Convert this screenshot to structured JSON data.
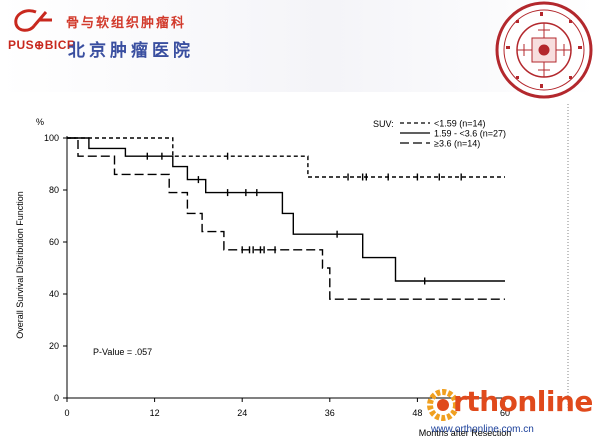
{
  "header": {
    "institute_cn": "骨与软组织肿瘤科",
    "hospital_cn": "北京肿瘤医院",
    "logo_text": "PUS⊕BICR",
    "seal_text": "北京大学肿瘤医院骨与软组织肿瘤科 PEKING UNIVERSITY SCHOOL OF ONCOLOGY BEIJING CANCER HOSPITAL"
  },
  "watermark": {
    "brand": "rthonline",
    "url": "www.orthonline.com.cn"
  },
  "chart_data": {
    "type": "line",
    "step": true,
    "ylabel": "Overall Survival Distribution Function",
    "y_unit": "%",
    "xlabel": "Months after Resection",
    "xlim": [
      0,
      60
    ],
    "ylim": [
      0,
      100
    ],
    "x_ticks": [
      0,
      12,
      24,
      36,
      48,
      60
    ],
    "y_ticks": [
      0,
      20,
      40,
      60,
      80,
      100
    ],
    "annotation": "P-Value = .057",
    "legend_title": "SUV:",
    "legend_position": "top-right",
    "series": [
      {
        "name": "<1.59 (n=14)",
        "dash": "short",
        "points": [
          [
            0,
            100
          ],
          [
            14.5,
            100
          ],
          [
            14.5,
            93
          ],
          [
            33,
            93
          ],
          [
            33,
            85
          ],
          [
            60,
            85
          ]
        ],
        "censored": [
          [
            22,
            93
          ],
          [
            38.5,
            85
          ],
          [
            40.5,
            85
          ],
          [
            41,
            85
          ],
          [
            44,
            85
          ],
          [
            48,
            85
          ],
          [
            51,
            85
          ],
          [
            54,
            85
          ]
        ]
      },
      {
        "name": "1.59 - <3.6 (n=27)",
        "dash": "solid",
        "points": [
          [
            0,
            100
          ],
          [
            3,
            100
          ],
          [
            3,
            96
          ],
          [
            8,
            96
          ],
          [
            8,
            93
          ],
          [
            14.5,
            93
          ],
          [
            14.5,
            89
          ],
          [
            16.5,
            89
          ],
          [
            16.5,
            84
          ],
          [
            19,
            84
          ],
          [
            19,
            79
          ],
          [
            29.5,
            79
          ],
          [
            29.5,
            71
          ],
          [
            31,
            71
          ],
          [
            31,
            63
          ],
          [
            40.5,
            63
          ],
          [
            40.5,
            54
          ],
          [
            45,
            54
          ],
          [
            45,
            45
          ],
          [
            60,
            45
          ]
        ],
        "censored": [
          [
            11,
            93
          ],
          [
            13,
            93
          ],
          [
            18,
            84
          ],
          [
            22,
            79
          ],
          [
            24.5,
            79
          ],
          [
            26,
            79
          ],
          [
            37,
            63
          ],
          [
            49,
            45
          ]
        ]
      },
      {
        "name": "≥3.6 (n=14)",
        "dash": "long",
        "points": [
          [
            0,
            100
          ],
          [
            1.5,
            100
          ],
          [
            1.5,
            93
          ],
          [
            6.5,
            93
          ],
          [
            6.5,
            86
          ],
          [
            14,
            86
          ],
          [
            14,
            79
          ],
          [
            16.5,
            79
          ],
          [
            16.5,
            71
          ],
          [
            18.5,
            71
          ],
          [
            18.5,
            64
          ],
          [
            21.5,
            64
          ],
          [
            21.5,
            57
          ],
          [
            35,
            57
          ],
          [
            35,
            50
          ],
          [
            36,
            50
          ],
          [
            36,
            38
          ],
          [
            60,
            38
          ]
        ],
        "censored": [
          [
            24,
            57
          ],
          [
            25,
            57
          ],
          [
            25.5,
            57
          ],
          [
            26.5,
            57
          ],
          [
            27,
            57
          ],
          [
            28.5,
            57
          ]
        ]
      }
    ]
  }
}
